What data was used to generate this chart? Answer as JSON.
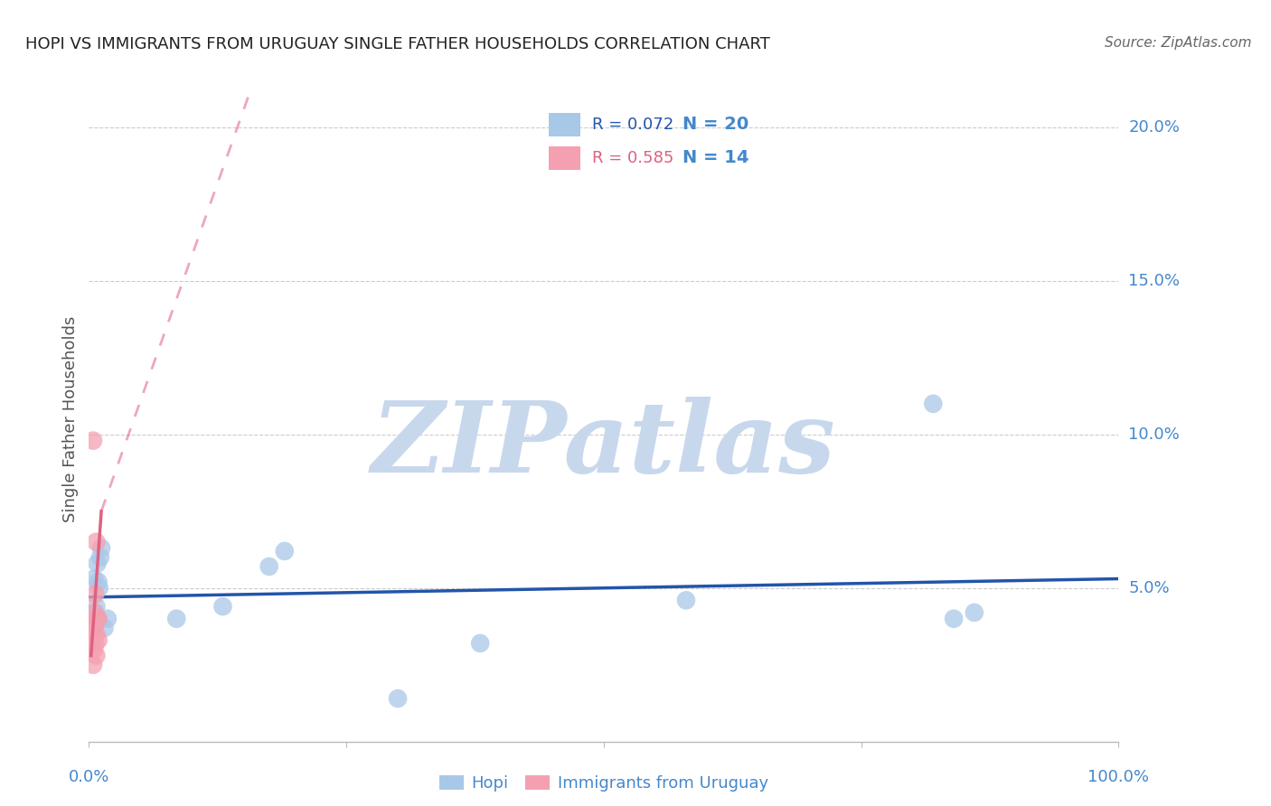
{
  "title": "HOPI VS IMMIGRANTS FROM URUGUAY SINGLE FATHER HOUSEHOLDS CORRELATION CHART",
  "source": "Source: ZipAtlas.com",
  "ylabel": "Single Father Households",
  "xlim": [
    0.0,
    1.0
  ],
  "ylim": [
    0.0,
    0.21
  ],
  "yticks": [
    0.05,
    0.1,
    0.15,
    0.2
  ],
  "ytick_labels": [
    "5.0%",
    "10.0%",
    "15.0%",
    "20.0%"
  ],
  "hopi_x": [
    0.008,
    0.012,
    0.009,
    0.007,
    0.018,
    0.015,
    0.005,
    0.01,
    0.006,
    0.011,
    0.175,
    0.19,
    0.13,
    0.085,
    0.38,
    0.58,
    0.82,
    0.84,
    0.86,
    0.3
  ],
  "hopi_y": [
    0.058,
    0.063,
    0.052,
    0.044,
    0.04,
    0.037,
    0.053,
    0.05,
    0.042,
    0.06,
    0.057,
    0.062,
    0.044,
    0.04,
    0.032,
    0.046,
    0.11,
    0.04,
    0.042,
    0.014
  ],
  "uruguay_x": [
    0.004,
    0.006,
    0.007,
    0.009,
    0.004,
    0.006,
    0.007,
    0.005,
    0.008,
    0.009,
    0.006,
    0.005,
    0.004,
    0.007
  ],
  "uruguay_y": [
    0.098,
    0.048,
    0.065,
    0.04,
    0.037,
    0.038,
    0.035,
    0.042,
    0.04,
    0.033,
    0.032,
    0.03,
    0.025,
    0.028
  ],
  "hopi_R": 0.072,
  "hopi_N": 20,
  "uruguay_R": 0.585,
  "uruguay_N": 14,
  "hopi_color": "#A8C8E8",
  "uruguay_color": "#F4A0B0",
  "hopi_line_color": "#2255AA",
  "uruguay_line_color": "#E06080",
  "grid_color": "#CCCCCC",
  "title_color": "#222222",
  "axis_label_color": "#555555",
  "tick_color": "#4488CC",
  "watermark_color": "#C8D8EC",
  "source_color": "#666666"
}
